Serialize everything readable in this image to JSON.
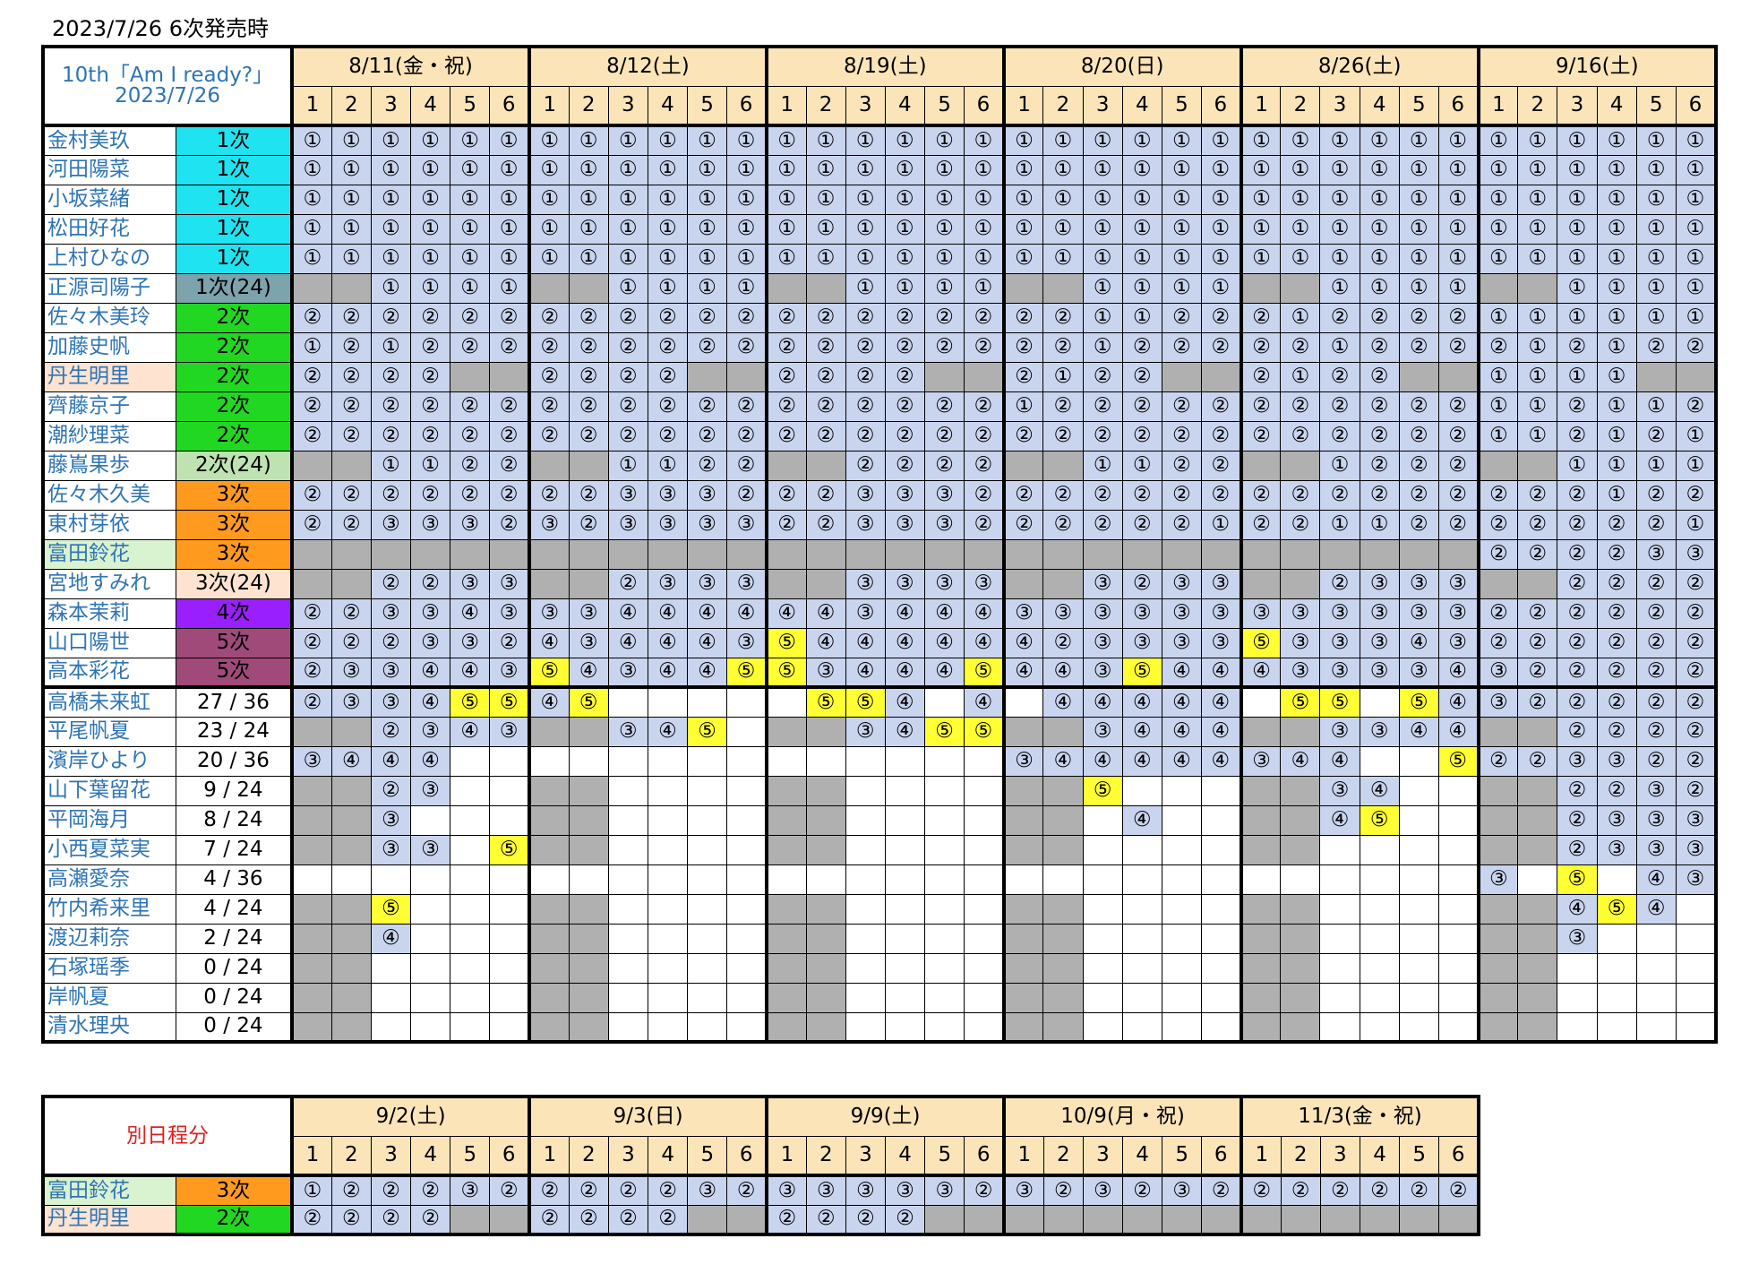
{
  "title": "2023/7/26 6次発売時",
  "main": {
    "corner": [
      "10th「Am I ready?」",
      "2023/7/26"
    ],
    "dates": [
      "8/11(金・祝)",
      "8/12(土)",
      "8/19(土)",
      "8/20(日)",
      "8/26(土)",
      "9/16(土)"
    ],
    "parts": [
      "1",
      "2",
      "3",
      "4",
      "5",
      "6"
    ],
    "members": [
      {
        "name": "金村美玖",
        "badge": "1次",
        "badge_color": "#1fe3f0",
        "cells": "111111|111111|111111|111111|111111|111111"
      },
      {
        "name": "河田陽菜",
        "badge": "1次",
        "badge_color": "#1fe3f0",
        "cells": "111111|111111|111111|111111|111111|111111"
      },
      {
        "name": "小坂菜緒",
        "badge": "1次",
        "badge_color": "#1fe3f0",
        "cells": "111111|111111|111111|111111|111111|111111"
      },
      {
        "name": "松田好花",
        "badge": "1次",
        "badge_color": "#1fe3f0",
        "cells": "111111|111111|111111|111111|111111|111111"
      },
      {
        "name": "上村ひなの",
        "badge": "1次",
        "badge_color": "#1fe3f0",
        "cells": "111111|111111|111111|111111|111111|111111"
      },
      {
        "name": "正源司陽子",
        "badge": "1次(24)",
        "badge_color": "#7da3ad",
        "cells": "gg1111|gg1111|gg1111|gg1111|gg1111|gg1111"
      },
      {
        "name": "佐々木美玲",
        "badge": "2次",
        "badge_color": "#22d722",
        "cells": "222222|222222|222222|221122|212222|111111"
      },
      {
        "name": "加藤史帆",
        "badge": "2次",
        "badge_color": "#22d722",
        "cells": "121222|222222|222222|221222|221222|212122"
      },
      {
        "name": "丹生明里",
        "badge": "2次",
        "badge_color": "#22d722",
        "name_bg": "peach",
        "cells": "2222gg|2222gg|2222gg|2122gg|2122gg|1111gg"
      },
      {
        "name": "齊藤京子",
        "badge": "2次",
        "badge_color": "#22d722",
        "cells": "222222|222222|222222|122222|222222|112112"
      },
      {
        "name": "潮紗理菜",
        "badge": "2次",
        "badge_color": "#22d722",
        "cells": "222222|222222|222222|222222|222222|112121"
      },
      {
        "name": "藤嶌果歩",
        "badge": "2次(24)",
        "badge_color": "#bfe3b0",
        "cells": "gg1122|gg1122|gg2222|gg1122|gg1222|gg1111"
      },
      {
        "name": "佐々木久美",
        "badge": "3次",
        "badge_color": "#ff9a1f",
        "cells": "222222|223332|223332|222222|222222|222122"
      },
      {
        "name": "東村芽依",
        "badge": "3次",
        "badge_color": "#ff9a1f",
        "cells": "223332|323333|223332|222221|221122|222221"
      },
      {
        "name": "富田鈴花",
        "badge": "3次",
        "badge_color": "#ff9a1f",
        "name_bg": "green",
        "cells": "gggggg|gggggg|gggggg|gggggg|gggggg|222233"
      },
      {
        "name": "宮地すみれ",
        "badge": "3次(24)",
        "badge_color": "#fde3d0",
        "cells": "gg2233|gg2333|gg3333|gg3233|gg2333|gg2222"
      },
      {
        "name": "森本茉莉",
        "badge": "4次",
        "badge_color": "#9a1fff",
        "cells": "223343|334444|443444|333333|333333|222222"
      },
      {
        "name": "山口陽世",
        "badge": "5次",
        "badge_color": "#a04a7a",
        "cells": "222332|434443|544444|423333|533343|222222"
      },
      {
        "name": "高本彩花",
        "badge": "5次",
        "badge_color": "#a04a7a",
        "cells": "233443|543445|534445|443544|433334|322222"
      },
      {
        "name": "高橋未来虹",
        "count": "27 / 36",
        "cells": "233455|45eeee|e554e4|e44444|e55e54|322222"
      },
      {
        "name": "平尾帆夏",
        "count": "23 / 24",
        "cells": "gg2343|gg345e|gg3455|gg3444|gg3344|gg2222"
      },
      {
        "name": "濱岸ひより",
        "count": "20 / 36",
        "cells": "3444ee|eeeeee|eeeeee|344444|344ee5|223322"
      },
      {
        "name": "山下葉留花",
        "count": "9 / 24",
        "cells": "gg23ee|ggeeee|ggeeee|gg5eee|gg34ee|gg2232"
      },
      {
        "name": "平岡海月",
        "count": "8 / 24",
        "cells": "gg3eee|ggeeee|ggeeee|gge4ee|gg45ee|gg2333"
      },
      {
        "name": "小西夏菜実",
        "count": "7 / 24",
        "cells": "gg33e5|ggeeee|ggeeee|ggeeee|ggeeee|gg2333"
      },
      {
        "name": "高瀬愛奈",
        "count": "4 / 36",
        "cells": "eeeeee|eeeeee|eeeeee|eeeeee|eeeeee|3e5e43"
      },
      {
        "name": "竹内希来里",
        "count": "4 / 24",
        "cells": "gg5eee|ggeeee|ggeeee|ggeeee|ggeeee|gg454e"
      },
      {
        "name": "渡辺莉奈",
        "count": "2 / 24",
        "cells": "gg4eee|ggeeee|ggeeee|ggeeee|ggeeee|gg3eee"
      },
      {
        "name": "石塚瑶季",
        "count": "0 / 24",
        "cells": "ggeeee|ggeeee|ggeeee|ggeeee|ggeeee|ggeeee"
      },
      {
        "name": "岸帆夏",
        "count": "0 / 24",
        "cells": "ggeeee|ggeeee|ggeeee|ggeeee|ggeeee|ggeeee"
      },
      {
        "name": "清水理央",
        "count": "0 / 24",
        "cells": "ggeeee|ggeeee|ggeeee|ggeeee|ggeeee|ggeeee"
      }
    ]
  },
  "sub": {
    "corner": "別日程分",
    "dates": [
      "9/2(土)",
      "9/3(日)",
      "9/9(土)",
      "10/9(月・祝)",
      "11/3(金・祝)"
    ],
    "parts": [
      "1",
      "2",
      "3",
      "4",
      "5",
      "6"
    ],
    "members": [
      {
        "name": "富田鈴花",
        "badge": "3次",
        "badge_color": "#ff9a1f",
        "name_bg": "green",
        "cells": "122232|222232|333332|323232|222222"
      },
      {
        "name": "丹生明里",
        "badge": "2次",
        "badge_color": "#22d722",
        "name_bg": "peach",
        "cells": "2222gg|2222gg|2222gg|gggggg|gggggg"
      }
    ]
  },
  "glyphs": {
    "1": "①",
    "2": "②",
    "3": "③",
    "4": "④",
    "5": "⑤"
  },
  "colors": {
    "cell_fill": "#c9d4ef",
    "highlight_5": "#ffff33",
    "gray": "#b0b0b0",
    "header_fill": "#fbe5b8",
    "name_text": "#2e74b5"
  }
}
